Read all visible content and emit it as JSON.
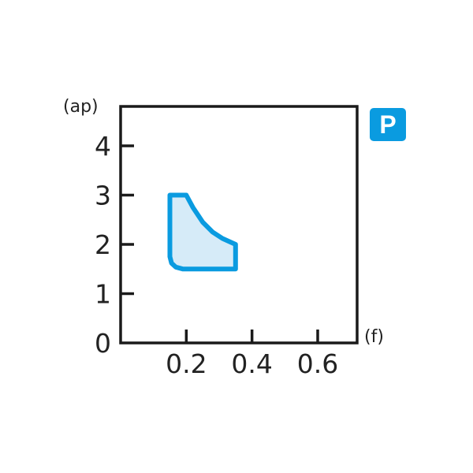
{
  "chart_data": {
    "type": "area",
    "xlabel": "(f)",
    "ylabel": "(ap)",
    "xlim": [
      0,
      0.72
    ],
    "ylim": [
      0,
      4.8
    ],
    "x_ticks": [
      0.2,
      0.4,
      0.6
    ],
    "x_tick_labels": [
      "0.2",
      "0.4",
      "0.6"
    ],
    "y_ticks": [
      0,
      1,
      2,
      3,
      4
    ],
    "y_tick_labels": [
      "0",
      "1",
      "2",
      "3",
      "4"
    ],
    "grid": false,
    "region": [
      [
        0.15,
        3.0
      ],
      [
        0.2,
        3.0
      ],
      [
        0.22,
        2.75
      ],
      [
        0.25,
        2.45
      ],
      [
        0.28,
        2.25
      ],
      [
        0.31,
        2.12
      ],
      [
        0.35,
        2.0
      ],
      [
        0.35,
        1.5
      ],
      [
        0.19,
        1.5
      ],
      [
        0.168,
        1.54
      ],
      [
        0.155,
        1.62
      ],
      [
        0.15,
        1.75
      ]
    ],
    "region_stroke": "#0a9be0",
    "region_fill": "#d6ebf8"
  },
  "badge": {
    "label": "P",
    "color": "#0a9be0"
  }
}
